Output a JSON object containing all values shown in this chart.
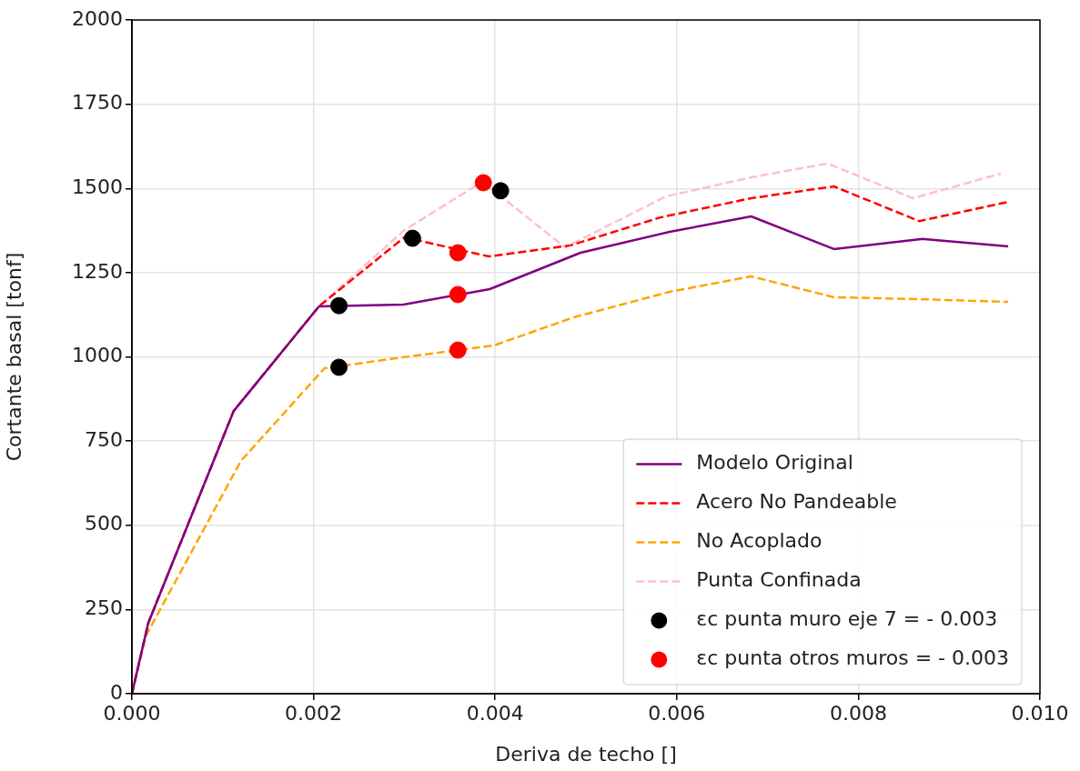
{
  "chart_data": {
    "type": "line",
    "xlabel": "Deriva de techo []",
    "ylabel": "Cortante basal [tonf]",
    "xlim": [
      0,
      0.01
    ],
    "ylim": [
      0,
      2000
    ],
    "xticks": [
      {
        "value": 0,
        "label": "0.000"
      },
      {
        "value": 0.002,
        "label": "0.002"
      },
      {
        "value": 0.004,
        "label": "0.004"
      },
      {
        "value": 0.006,
        "label": "0.006"
      },
      {
        "value": 0.008,
        "label": "0.008"
      },
      {
        "value": 0.01,
        "label": "0.010"
      }
    ],
    "yticks": [
      0,
      250,
      500,
      750,
      1000,
      1250,
      1500,
      1750,
      2000
    ],
    "grid": true,
    "legend": "bottom right",
    "series": [
      {
        "name": "Modelo Original",
        "color": "#800080",
        "line_style": "solid",
        "marker": "none",
        "x": [
          0,
          0.00018,
          0.00112,
          0.00206,
          0.00299,
          0.00394,
          0.00494,
          0.00592,
          0.00682,
          0.00773,
          0.00871,
          0.00965
        ],
        "values": [
          0,
          210,
          839,
          1150,
          1155,
          1201,
          1309,
          1371,
          1417,
          1320,
          1350,
          1328
        ]
      },
      {
        "name": "Acero No Pandeable",
        "color": "#ff0000",
        "line_style": "dashed",
        "marker": "none",
        "x": [
          0,
          0.00018,
          0.00112,
          0.00206,
          0.003,
          0.00393,
          0.00483,
          0.00582,
          0.00682,
          0.00773,
          0.00867,
          0.00965
        ],
        "values": [
          0,
          210,
          839,
          1150,
          1355,
          1298,
          1331,
          1414,
          1471,
          1506,
          1403,
          1460
        ]
      },
      {
        "name": "No Acoplado",
        "color": "#ffa500",
        "line_style": "dashed",
        "marker": "none",
        "x": [
          0,
          0.00015,
          0.0012,
          0.00212,
          0.00299,
          0.00399,
          0.00486,
          0.00592,
          0.00682,
          0.00773,
          0.00871,
          0.00965
        ],
        "values": [
          0,
          170,
          691,
          966,
          999,
          1034,
          1117,
          1193,
          1239,
          1177,
          1171,
          1163
        ]
      },
      {
        "name": "Punta Confinada",
        "color": "#ffc0cb",
        "line_style": "dashed",
        "marker": "none",
        "x": [
          0,
          0.00018,
          0.00112,
          0.00206,
          0.003,
          0.00386,
          0.00477,
          0.00588,
          0.00682,
          0.00766,
          0.0086,
          0.00957
        ],
        "values": [
          0,
          210,
          839,
          1150,
          1376,
          1520,
          1325,
          1476,
          1533,
          1574,
          1471,
          1544
        ]
      },
      {
        "name": "εc punta muro eje 7 = - 0.003",
        "type": "scatter",
        "color": "#000000",
        "marker": "circle",
        "x": [
          0.00228,
          0.00228,
          0.00309,
          0.00406
        ],
        "values": [
          1152,
          969,
          1352,
          1493
        ]
      },
      {
        "name": "εc punta otros muros = - 0.003",
        "type": "scatter",
        "color": "#ff0000",
        "marker": "circle",
        "x": [
          0.00359,
          0.00359,
          0.00359,
          0.00387
        ],
        "values": [
          1185,
          1020,
          1309,
          1517
        ]
      }
    ]
  }
}
